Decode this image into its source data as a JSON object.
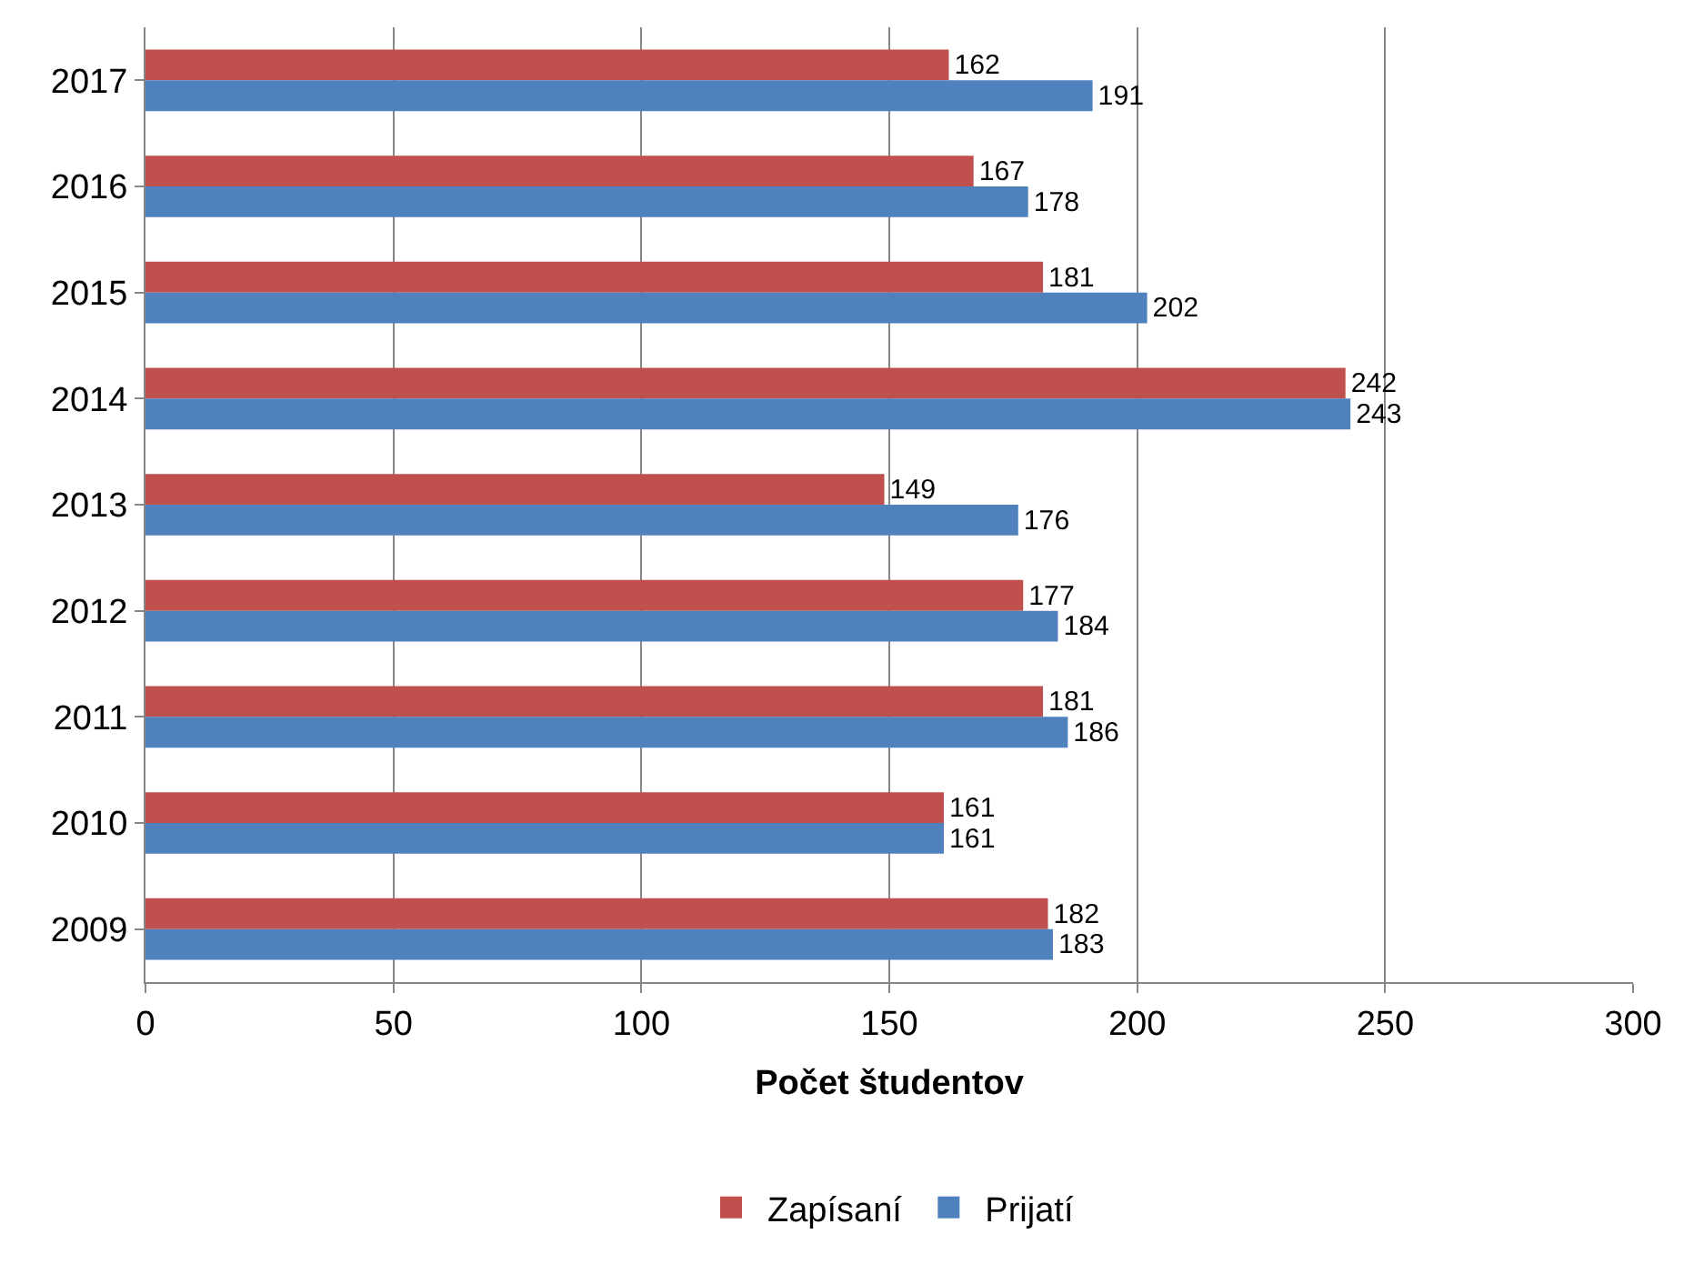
{
  "chart_data": {
    "type": "bar",
    "orientation": "horizontal",
    "xlabel": "Počet študentov",
    "categories": [
      "2017",
      "2016",
      "2015",
      "2014",
      "2013",
      "2012",
      "2011",
      "2010",
      "2009"
    ],
    "series": [
      {
        "name": "Zapísaní",
        "color": "#c0504d",
        "values": [
          162,
          167,
          181,
          242,
          149,
          177,
          181,
          161,
          182
        ]
      },
      {
        "name": "Prijatí",
        "color": "#4f81bd",
        "values": [
          191,
          178,
          202,
          243,
          176,
          184,
          186,
          161,
          183
        ]
      }
    ],
    "xlim": [
      0,
      300
    ],
    "xticks": [
      0,
      50,
      100,
      150,
      200,
      250,
      300
    ],
    "grid": "x",
    "legend": "bottom",
    "data_labels": true
  }
}
